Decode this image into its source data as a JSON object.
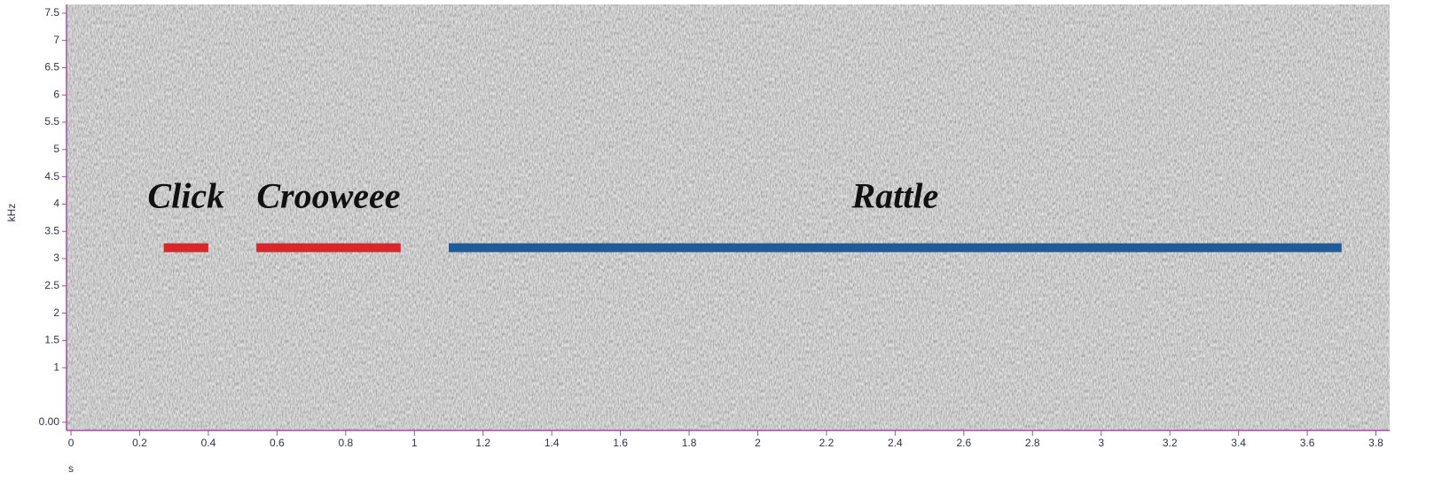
{
  "chart_data": {
    "type": "spectrogram",
    "x_label": "s",
    "y_label": "kHz",
    "xlim": [
      -0.013,
      3.84
    ],
    "ylim": [
      -0.15,
      7.66
    ],
    "xticks": [
      0,
      0.2,
      0.4,
      0.6,
      0.8,
      1,
      1.2,
      1.4,
      1.6,
      1.8,
      2,
      2.2,
      2.4,
      2.6,
      2.8,
      3,
      3.2,
      3.4,
      3.6,
      3.8
    ],
    "yticks": [
      {
        "value": 0,
        "label": "0.00"
      },
      1,
      1.5,
      2,
      2.5,
      3,
      3.5,
      4,
      4.5,
      5,
      5.5,
      6,
      6.5,
      7,
      7.5
    ],
    "segments": [
      {
        "name": "Click",
        "color": "#d9262b",
        "start": 0.27,
        "end": 0.4,
        "y": 3.2
      },
      {
        "name": "Crooweee",
        "color": "#d9262b",
        "start": 0.54,
        "end": 0.96,
        "y": 3.2
      },
      {
        "name": "Rattle",
        "color": "#1f5a99",
        "start": 1.1,
        "end": 3.7,
        "y": 3.2
      }
    ]
  }
}
